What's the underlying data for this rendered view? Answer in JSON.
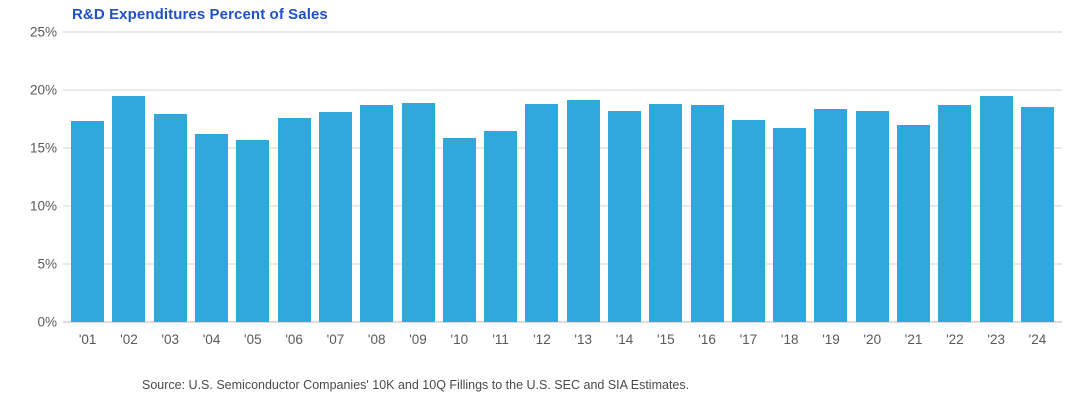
{
  "title": "R&D Expenditures Percent of Sales",
  "source": "Source: U.S. Semiconductor Companies' 10K and 10Q Fillings to the U.S. SEC and SIA Estimates.",
  "colors": {
    "bar": "#2FA8DC",
    "title_text": "#2151C8",
    "grid": "#E9E9E9",
    "baseline": "#DCDCDC",
    "axis_text": "#595959",
    "source_text": "#4A4A4A"
  },
  "chart_data": {
    "type": "bar",
    "title": "R&D Expenditures Percent of Sales",
    "xlabel": "",
    "ylabel": "",
    "categories": [
      "'01",
      "'02",
      "'03",
      "'04",
      "'05",
      "'06",
      "'07",
      "'08",
      "'09",
      "'10",
      "'11",
      "'12",
      "'13",
      "'14",
      "'15",
      "'16",
      "'17",
      "'18",
      "'19",
      "'20",
      "'21",
      "'22",
      "'23",
      "'24"
    ],
    "values": [
      17.3,
      19.5,
      17.9,
      16.2,
      15.7,
      17.6,
      18.1,
      18.7,
      18.9,
      15.9,
      16.5,
      18.8,
      19.1,
      18.2,
      18.8,
      18.7,
      17.4,
      16.7,
      18.4,
      18.2,
      17.0,
      18.7,
      19.5,
      18.5
    ],
    "ylim": [
      0,
      25
    ],
    "yticks": [
      0,
      5,
      10,
      15,
      20,
      25
    ],
    "ytick_labels": [
      "0%",
      "5%",
      "10%",
      "15%",
      "20%",
      "25%"
    ],
    "grid": true,
    "legend": false,
    "annotation": "Source: U.S. Semiconductor Companies' 10K and 10Q Fillings to the U.S. SEC and SIA Estimates."
  }
}
